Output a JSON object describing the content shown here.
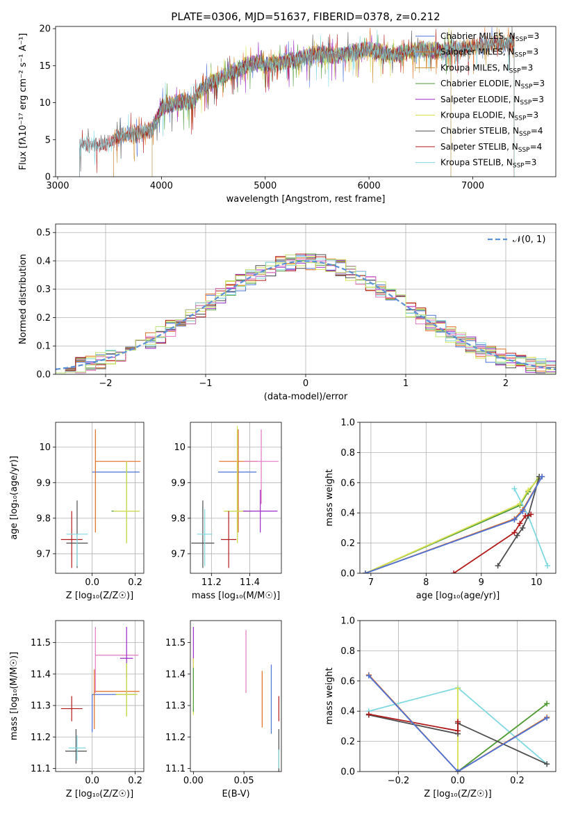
{
  "figure": {
    "title": "PLATE=0306, MJD=51637, FIBERID=0378, z=0.212"
  },
  "series_colors": {
    "Chabrier MILES": "#4c72d8",
    "Salpeter MILES": "#e06c1e",
    "Kroupa MILES": "#c9902a",
    "Chabrier ELODIE": "#4e9a3a",
    "Salpeter ELODIE": "#9b28c8",
    "Kroupa ELODIE": "#d8e050",
    "Chabrier STELIB": "#4d4d4d",
    "Salpeter STELIB": "#b11a1a",
    "Kroupa STELIB": "#7fd8e0"
  },
  "chart_data": [
    {
      "id": "spectrum",
      "type": "line",
      "title": "PLATE=0306, MJD=51637, FIBERID=0378, z=0.212",
      "xlabel": "wavelength [Angstrom, rest frame]",
      "ylabel": "Flux [fλ10⁻¹⁷ erg cm⁻² s⁻¹ A⁻¹]",
      "xlim": [
        2980,
        7800
      ],
      "ylim": [
        0,
        20.3
      ],
      "xticks": [
        3000,
        4000,
        5000,
        6000,
        7000
      ],
      "yticks": [
        0,
        5,
        10,
        15,
        20
      ],
      "grid": false,
      "legend_position": "lower-right",
      "legend": [
        "Chabrier MILES, N_SSP=3",
        "Salpeter MILES, N_SSP=3",
        "Kroupa MILES, N_SSP=3",
        "Chabrier ELODIE, N_SSP=3",
        "Salpeter ELODIE, N_SSP=3",
        "Kroupa ELODIE, N_SSP=3",
        "Chabrier STELIB, N_SSP=4",
        "Salpeter STELIB, N_SSP=4",
        "Kroupa STELIB, N_SSP=3"
      ],
      "legend_names": [
        "Chabrier MILES",
        "Salpeter MILES",
        "Kroupa MILES",
        "Chabrier ELODIE",
        "Salpeter ELODIE",
        "Kroupa ELODIE",
        "Chabrier STELIB",
        "Salpeter STELIB",
        "Kroupa STELIB"
      ],
      "legend_ssp": [
        "3",
        "3",
        "3",
        "3",
        "3",
        "3",
        "4",
        "4",
        "3"
      ],
      "continuum_x": [
        3200,
        3250,
        3300,
        3350,
        3400,
        3450,
        3500,
        3550,
        3600,
        3650,
        3700,
        3750,
        3800,
        3850,
        3900,
        3950,
        4000,
        4100,
        4200,
        4300,
        4400,
        4500,
        4600,
        4700,
        4800,
        4900,
        5000,
        5100,
        5200,
        5300,
        5400,
        5500,
        5600,
        5700,
        5800,
        5900,
        6000,
        6100,
        6200,
        6300,
        6400,
        6500,
        6600,
        6700,
        6800,
        6900,
        7000,
        7100,
        7200,
        7300,
        7400,
        7500
      ],
      "continuum_y": [
        3.8,
        4.2,
        4.4,
        4.2,
        4.3,
        4.5,
        4.4,
        5.2,
        5.5,
        5.6,
        5.8,
        5.7,
        6.0,
        6.2,
        6.3,
        7.5,
        9.3,
        9.8,
        10.2,
        10.0,
        12.0,
        12.8,
        13.6,
        14.2,
        14.9,
        15.4,
        15.0,
        15.3,
        15.6,
        15.8,
        16.2,
        16.6,
        16.5,
        16.3,
        16.6,
        17.0,
        17.2,
        16.8,
        16.4,
        16.6,
        17.0,
        17.2,
        17.1,
        16.9,
        17.4,
        17.2,
        17.6,
        17.8,
        18.0,
        17.9,
        18.2,
        18.4
      ],
      "series_ranges": [
        {
          "name": "Chabrier MILES",
          "x_start": 3540,
          "x_end": 7400
        },
        {
          "name": "Salpeter MILES",
          "x_start": 3540,
          "x_end": 7400
        },
        {
          "name": "Kroupa MILES",
          "x_start": 3540,
          "x_end": 7400
        },
        {
          "name": "Chabrier ELODIE",
          "x_start": 3910,
          "x_end": 6790
        },
        {
          "name": "Salpeter ELODIE",
          "x_start": 3910,
          "x_end": 6790
        },
        {
          "name": "Kroupa ELODIE",
          "x_start": 3910,
          "x_end": 6790
        },
        {
          "name": "Chabrier STELIB",
          "x_start": 3210,
          "x_end": 7400
        },
        {
          "name": "Salpeter STELIB",
          "x_start": 3210,
          "x_end": 7400
        },
        {
          "name": "Kroupa STELIB",
          "x_start": 3210,
          "x_end": 7400
        }
      ]
    },
    {
      "id": "residuals",
      "type": "histogram",
      "xlabel": "(data-model)/error",
      "ylabel": "Normed distribution",
      "xlim": [
        -2.5,
        2.5
      ],
      "ylim": [
        0,
        0.53
      ],
      "xticks": [
        -2,
        -1,
        0,
        1,
        2
      ],
      "yticks": [
        0.0,
        0.1,
        0.2,
        0.3,
        0.4,
        0.5
      ],
      "grid": true,
      "legend_position": "top-right",
      "legend": [
        "𝒩(0, 1)"
      ],
      "bin_width": 0.1,
      "x_start": -2.5,
      "reference_curve": {
        "name": "N(0,1)",
        "color": "#5b8fd6",
        "style": "dashed"
      },
      "series_colors": [
        "#4c72d8",
        "#e06c1e",
        "#4e9a3a",
        "#9b28c8",
        "#d8e050",
        "#4d4d4d",
        "#b11a1a",
        "#7fd8e0",
        "#e377c2",
        "#b8e070"
      ],
      "noise_amplitude": 0.03
    },
    {
      "id": "age_vs_Z",
      "type": "errorbar",
      "xlabel": "Z [log₁₀(Z/Z☉)]",
      "ylabel": "age  [log₁₀(age/yr)]",
      "xlim": [
        -0.17,
        0.24
      ],
      "ylim": [
        9.645,
        10.07
      ],
      "xticks": [
        -0.0,
        0.2
      ],
      "xticklabels": [
        "0.0",
        "0.2"
      ],
      "yticks": [
        9.7,
        9.8,
        9.9,
        10.0
      ],
      "grid": true,
      "points": [
        {
          "color": "#4c72d8",
          "x": 0.0,
          "y": 9.93,
          "xerr": [
            0.0,
            0.22
          ],
          "yerr": [
            0.0,
            0.0
          ]
        },
        {
          "color": "#e06c1e",
          "x": 0.015,
          "y": 9.96,
          "xerr": [
            0.0,
            0.21
          ],
          "yerr": [
            0.2,
            0.09
          ]
        },
        {
          "color": "#4e9a3a",
          "x": 0.16,
          "y": 9.82,
          "xerr": [
            0.07,
            0.06
          ],
          "yerr": [
            0.09,
            0.14
          ]
        },
        {
          "color": "#d8e050",
          "x": 0.16,
          "y": 9.82,
          "xerr": [
            0.06,
            0.06
          ],
          "yerr": [
            0.09,
            0.14
          ]
        },
        {
          "color": "#b11a1a",
          "x": -0.095,
          "y": 9.74,
          "xerr": [
            0.05,
            0.05
          ],
          "yerr": [
            0.08,
            0.08
          ]
        },
        {
          "color": "#4d4d4d",
          "x": -0.07,
          "y": 9.73,
          "xerr": [
            0.05,
            0.05
          ],
          "yerr": [
            0.07,
            0.12
          ]
        },
        {
          "color": "#7fd8e0",
          "x": -0.07,
          "y": 9.755,
          "xerr": [
            0.05,
            0.05
          ],
          "yerr": [
            0.09,
            0.0
          ]
        }
      ]
    },
    {
      "id": "age_vs_mass",
      "type": "errorbar",
      "xlabel": "mass [log₁₀(M/M☉)]",
      "ylabel": "",
      "xlim": [
        11.09,
        11.565
      ],
      "ylim": [
        9.645,
        10.07
      ],
      "xticks": [
        11.2,
        11.4
      ],
      "xticklabels": [
        "11.2",
        "11.4"
      ],
      "yticks": [
        9.7,
        9.8,
        9.9,
        10.0
      ],
      "grid": true,
      "points": [
        {
          "color": "#4c72d8",
          "x": 11.335,
          "y": 9.93,
          "xerr": [
            0.1,
            0.1
          ],
          "yerr": [
            0.17,
            0.12
          ]
        },
        {
          "color": "#e06c1e",
          "x": 11.34,
          "y": 9.96,
          "xerr": [
            0.1,
            0.1
          ],
          "yerr": [
            0.2,
            0.09
          ]
        },
        {
          "color": "#4e9a3a",
          "x": 11.335,
          "y": 9.82,
          "xerr": [
            0.07,
            0.07
          ],
          "yerr": [
            0.09,
            0.14
          ]
        },
        {
          "color": "#d8e050",
          "x": 11.335,
          "y": 9.82,
          "xerr": [
            0.07,
            0.07
          ],
          "yerr": [
            0.09,
            0.24
          ]
        },
        {
          "color": "#9b28c8",
          "x": 11.455,
          "y": 9.82,
          "xerr": [
            0.09,
            0.09
          ],
          "yerr": [
            0.06,
            0.06
          ]
        },
        {
          "color": "#e377c2",
          "x": 11.46,
          "y": 9.96,
          "xerr": [
            0.09,
            0.09
          ],
          "yerr": [
            0.12,
            0.09
          ]
        },
        {
          "color": "#b11a1a",
          "x": 11.29,
          "y": 9.74,
          "xerr": [
            0.04,
            0.04
          ],
          "yerr": [
            0.08,
            0.08
          ]
        },
        {
          "color": "#4d4d4d",
          "x": 11.155,
          "y": 9.73,
          "xerr": [
            0.06,
            0.06
          ],
          "yerr": [
            0.07,
            0.12
          ]
        },
        {
          "color": "#7fd8e0",
          "x": 11.165,
          "y": 9.755,
          "xerr": [
            0.04,
            0.04
          ],
          "yerr": [
            0.09,
            0.07
          ]
        }
      ]
    },
    {
      "id": "mass_weight_vs_age",
      "type": "line",
      "xlabel": "age  [log₁₀(age/yr)]",
      "ylabel": "mass weight",
      "xlim": [
        6.8,
        10.35
      ],
      "ylim": [
        0,
        1.0
      ],
      "xticks": [
        7,
        8,
        9,
        10
      ],
      "yticks": [
        0.0,
        0.2,
        0.4,
        0.6,
        0.8,
        1.0
      ],
      "grid": true,
      "series": [
        {
          "color": "#4e9a3a",
          "x": [
            6.9,
            9.7,
            9.85,
            10.05
          ],
          "y": [
            0.0,
            0.45,
            0.54,
            0.64
          ]
        },
        {
          "color": "#d8e050",
          "x": [
            6.9,
            9.7,
            9.85,
            10.05
          ],
          "y": [
            0.0,
            0.46,
            0.55,
            0.63
          ]
        },
        {
          "color": "#7fd8e0",
          "x": [
            9.6,
            9.85,
            10.2
          ],
          "y": [
            0.56,
            0.38,
            0.05
          ]
        },
        {
          "color": "#4d4d4d",
          "x": [
            9.3,
            9.65,
            9.75,
            9.85,
            10.05
          ],
          "y": [
            0.05,
            0.25,
            0.3,
            0.38,
            0.64
          ]
        },
        {
          "color": "#b11a1a",
          "x": [
            8.5,
            9.6,
            9.7,
            9.8,
            9.9
          ],
          "y": [
            0.0,
            0.27,
            0.33,
            0.38,
            0.39
          ]
        },
        {
          "color": "#e06c1e",
          "x": [
            6.9,
            9.6,
            9.75,
            10.1
          ],
          "y": [
            0.0,
            0.36,
            0.42,
            0.64
          ]
        },
        {
          "color": "#4c72d8",
          "x": [
            6.9,
            9.6,
            9.75,
            10.1
          ],
          "y": [
            0.0,
            0.355,
            0.41,
            0.64
          ]
        }
      ]
    },
    {
      "id": "mass_vs_Z",
      "type": "errorbar",
      "xlabel": "Z [log₁₀(Z/Z☉)]",
      "ylabel": "mass [log₁₀(M/M☉)]",
      "xlim": [
        -0.17,
        0.24
      ],
      "ylim": [
        11.09,
        11.57
      ],
      "xticks": [
        0.0,
        0.2
      ],
      "xticklabels": [
        "0.0",
        "0.2"
      ],
      "yticks": [
        11.1,
        11.2,
        11.3,
        11.4,
        11.5
      ],
      "grid": true,
      "points": [
        {
          "color": "#4c72d8",
          "x": 0.0,
          "y": 11.335,
          "xerr": [
            0.0,
            0.2
          ],
          "yerr": [
            0.12,
            0.0
          ]
        },
        {
          "color": "#e06c1e",
          "x": 0.01,
          "y": 11.345,
          "xerr": [
            0.0,
            0.21
          ],
          "yerr": [
            0.12,
            0.07
          ]
        },
        {
          "color": "#e377c2",
          "x": 0.015,
          "y": 11.46,
          "xerr": [
            0.0,
            0.2
          ],
          "yerr": [
            0.12,
            0.09
          ]
        },
        {
          "color": "#9b28c8",
          "x": 0.16,
          "y": 11.45,
          "xerr": [
            0.03,
            0.03
          ],
          "yerr": [
            0.06,
            0.1
          ]
        },
        {
          "color": "#4e9a3a",
          "x": 0.16,
          "y": 11.335,
          "xerr": [
            0.05,
            0.05
          ],
          "yerr": [
            0.07,
            0.1
          ]
        },
        {
          "color": "#d8e050",
          "x": 0.16,
          "y": 11.335,
          "xerr": [
            0.05,
            0.05
          ],
          "yerr": [
            0.07,
            0.1
          ]
        },
        {
          "color": "#b11a1a",
          "x": -0.095,
          "y": 11.29,
          "xerr": [
            0.05,
            0.05
          ],
          "yerr": [
            0.04,
            0.04
          ]
        },
        {
          "color": "#4d4d4d",
          "x": -0.075,
          "y": 11.155,
          "xerr": [
            0.05,
            0.05
          ],
          "yerr": [
            0.04,
            0.07
          ]
        },
        {
          "color": "#7fd8e0",
          "x": -0.07,
          "y": 11.165,
          "xerr": [
            0.04,
            0.04
          ],
          "yerr": [
            0.04,
            0.04
          ]
        }
      ]
    },
    {
      "id": "mass_vs_EBV",
      "type": "errorbar",
      "xlabel": "E(B-V)",
      "ylabel": "",
      "xlim": [
        -0.003,
        0.087
      ],
      "ylim": [
        11.09,
        11.57
      ],
      "xticks": [
        0.0,
        0.05
      ],
      "xticklabels": [
        "0.00",
        "0.05"
      ],
      "yticks": [
        11.1,
        11.2,
        11.3,
        11.4,
        11.5
      ],
      "grid": false,
      "points": [
        {
          "color": "#9b28c8",
          "x": 0.0,
          "y": 11.45,
          "xerr": [
            0,
            0
          ],
          "yerr": [
            0.1,
            0.1
          ]
        },
        {
          "color": "#d8e050",
          "x": 0.0,
          "y": 11.36,
          "xerr": [
            0,
            0
          ],
          "yerr": [
            0.09,
            0.09
          ]
        },
        {
          "color": "#4e9a3a",
          "x": 0.0,
          "y": 11.35,
          "xerr": [
            0,
            0
          ],
          "yerr": [
            0.07,
            0.07
          ]
        },
        {
          "color": "#e377c2",
          "x": 0.052,
          "y": 11.44,
          "xerr": [
            0,
            0
          ],
          "yerr": [
            0.1,
            0.1
          ]
        },
        {
          "color": "#e06c1e",
          "x": 0.068,
          "y": 11.32,
          "xerr": [
            0,
            0
          ],
          "yerr": [
            0.09,
            0.09
          ]
        },
        {
          "color": "#4c72d8",
          "x": 0.077,
          "y": 11.32,
          "xerr": [
            0,
            0
          ],
          "yerr": [
            0.11,
            0.11
          ]
        },
        {
          "color": "#b11a1a",
          "x": 0.0845,
          "y": 11.29,
          "xerr": [
            0,
            0
          ],
          "yerr": [
            0.04,
            0.04
          ]
        },
        {
          "color": "#4d4d4d",
          "x": 0.0845,
          "y": 11.155,
          "xerr": [
            0,
            0
          ],
          "yerr": [
            0.07,
            0.07
          ]
        },
        {
          "color": "#7fd8e0",
          "x": 0.0845,
          "y": 11.13,
          "xerr": [
            0,
            0
          ],
          "yerr": [
            0.03,
            0.03
          ]
        }
      ]
    },
    {
      "id": "mass_weight_vs_Z",
      "type": "line",
      "xlabel": "Z [log₁₀(Z/Z☉)]",
      "ylabel": "mass weight",
      "xlim": [
        -0.33,
        0.33
      ],
      "ylim": [
        0,
        1.0
      ],
      "xticks": [
        -0.2,
        0.0,
        0.2
      ],
      "xticklabels": [
        "−0.2",
        "0.0",
        "0.2"
      ],
      "yticks": [
        0.0,
        0.2,
        0.4,
        0.6,
        0.8,
        1.0
      ],
      "grid": true,
      "series": [
        {
          "color": "#7fd8e0",
          "x": [
            -0.3,
            0.0,
            0.3
          ],
          "y": [
            0.4,
            0.555,
            0.05
          ]
        },
        {
          "color": "#d8e050",
          "x": [
            0.0,
            0.0,
            0.3
          ],
          "y": [
            0.55,
            0.0,
            0.45
          ]
        },
        {
          "color": "#4e9a3a",
          "x": [
            0.0,
            0.3
          ],
          "y": [
            0.0,
            0.45
          ]
        },
        {
          "color": "#4d4d4d",
          "x": [
            -0.3,
            0.0,
            0.0,
            0.3
          ],
          "y": [
            0.375,
            0.25,
            0.32,
            0.05
          ]
        },
        {
          "color": "#b11a1a",
          "x": [
            -0.3,
            0.0,
            0.0
          ],
          "y": [
            0.38,
            0.27,
            0.33
          ]
        },
        {
          "color": "#e06c1e",
          "x": [
            -0.3,
            0.0,
            0.3
          ],
          "y": [
            0.64,
            0.0,
            0.36
          ]
        },
        {
          "color": "#4c72d8",
          "x": [
            -0.3,
            0.0,
            0.3
          ],
          "y": [
            0.635,
            0.0,
            0.355
          ]
        }
      ]
    }
  ]
}
